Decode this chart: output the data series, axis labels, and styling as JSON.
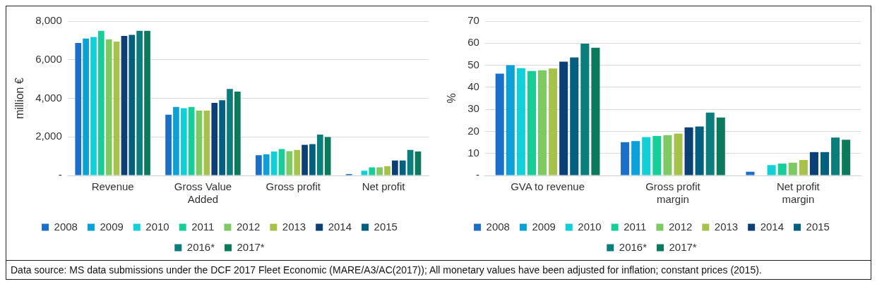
{
  "chart_data": [
    {
      "type": "bar",
      "ylabel": "million €",
      "categories": [
        "Revenue",
        "Gross Value Added",
        "Gross profit",
        "Net profit"
      ],
      "series": [
        {
          "name": "2008",
          "color": "#1a6fc9",
          "values": [
            6870,
            3150,
            1050,
            70
          ]
        },
        {
          "name": "2009",
          "color": "#0aa0d8",
          "values": [
            7100,
            3550,
            1100,
            null
          ]
        },
        {
          "name": "2010",
          "color": "#12d0d8",
          "values": [
            7180,
            3490,
            1240,
            250
          ]
        },
        {
          "name": "2011",
          "color": "#16cf98",
          "values": [
            7500,
            3550,
            1370,
            420
          ]
        },
        {
          "name": "2012",
          "color": "#7dc962",
          "values": [
            7060,
            3360,
            1260,
            420
          ]
        },
        {
          "name": "2013",
          "color": "#a6c24a",
          "values": [
            6940,
            3360,
            1320,
            480
          ]
        },
        {
          "name": "2014",
          "color": "#0c3f75",
          "values": [
            7230,
            3760,
            1590,
            780
          ]
        },
        {
          "name": "2015",
          "color": "#025f7f",
          "values": [
            7290,
            3900,
            1630,
            780
          ]
        },
        {
          "name": "2016*",
          "color": "#0a7d7d",
          "values": [
            7500,
            4480,
            2120,
            1320
          ]
        },
        {
          "name": "2017*",
          "color": "#0b7a5c",
          "values": [
            7500,
            4350,
            1990,
            1240
          ]
        }
      ],
      "ylim": [
        0,
        8000
      ],
      "yticks": [
        {
          "value": 0,
          "label": "-"
        },
        {
          "value": 2000,
          "label": "2,000"
        },
        {
          "value": 4000,
          "label": "4,000"
        },
        {
          "value": 6000,
          "label": "6,000"
        },
        {
          "value": 8000,
          "label": "8,000"
        }
      ],
      "grid": "y",
      "legend": "bottom",
      "annotations": [
        "Data source: MS data submissions under the DCF 2017 Fleet Economic (MARE/A3/AC(2017)); All monetary values have been adjusted for inflation; constant prices (2015)."
      ]
    },
    {
      "type": "bar",
      "ylabel": "%",
      "categories": [
        "GVA to revenue",
        "Gross profit margin",
        "Net profit margin"
      ],
      "series": [
        {
          "name": "2008",
          "color": "#1a6fc9",
          "values": [
            46.2,
            15.1,
            1.7
          ]
        },
        {
          "name": "2009",
          "color": "#0aa0d8",
          "values": [
            50,
            15.6,
            null
          ]
        },
        {
          "name": "2010",
          "color": "#12d0d8",
          "values": [
            48.7,
            17.4,
            4.7
          ]
        },
        {
          "name": "2011",
          "color": "#16cf98",
          "values": [
            47.4,
            17.9,
            5.4
          ]
        },
        {
          "name": "2012",
          "color": "#7dc962",
          "values": [
            47.7,
            18.3,
            5.8
          ]
        },
        {
          "name": "2013",
          "color": "#a6c24a",
          "values": [
            48.5,
            19,
            7
          ]
        },
        {
          "name": "2014",
          "color": "#0c3f75",
          "values": [
            51.6,
            21.8,
            10.6
          ]
        },
        {
          "name": "2015",
          "color": "#025f7f",
          "values": [
            53.5,
            22.2,
            10.6
          ]
        },
        {
          "name": "2016*",
          "color": "#0a7d7d",
          "values": [
            59.8,
            28.5,
            17.2
          ]
        },
        {
          "name": "2017*",
          "color": "#0b7a5c",
          "values": [
            57.9,
            26.3,
            16.2
          ]
        }
      ],
      "ylim": [
        0,
        70
      ],
      "yticks": [
        {
          "value": 0,
          "label": "-"
        },
        10,
        20,
        30,
        40,
        50,
        60,
        70
      ],
      "grid": "y",
      "legend": "bottom"
    }
  ]
}
